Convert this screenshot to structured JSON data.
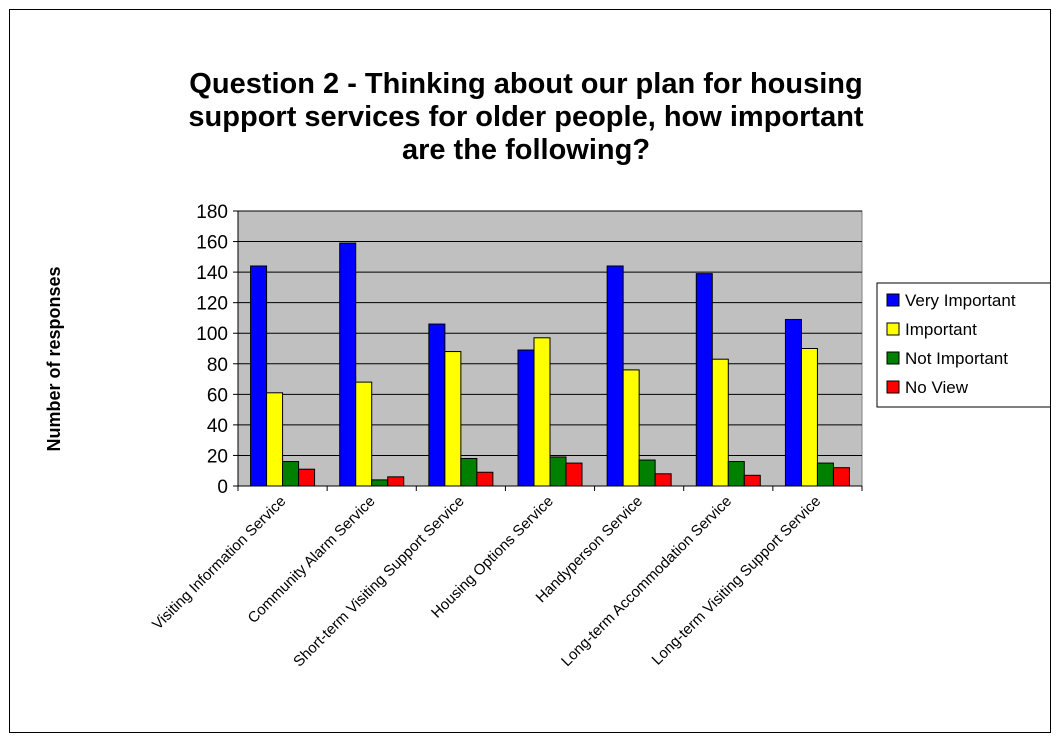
{
  "chart_data": {
    "type": "bar",
    "title": "Question 2 - Thinking about our plan for housing support services for older people, how important are the following?",
    "title_lines": [
      "Question 2 - Thinking about our plan for housing",
      "support services for older people, how important",
      "are the following?"
    ],
    "xlabel": "",
    "ylabel": "Number of responses",
    "ylim": [
      0,
      180
    ],
    "yticks": [
      "0",
      "20",
      "40",
      "60",
      "80",
      "100",
      "120",
      "140",
      "160",
      "180"
    ],
    "grid": true,
    "legend_position": "right",
    "categories": [
      "Visiting Information Service",
      "Community Alarm Service",
      "Short-term Visiting Support Service",
      "Housing Options Service",
      "Handyperson Service",
      "Long-term Accommodation Service",
      "Long-term Visiting Support Service"
    ],
    "series": [
      {
        "name": "Very Important",
        "color": "#0000ff",
        "values": [
          144,
          159,
          106,
          89,
          144,
          139,
          109
        ]
      },
      {
        "name": "Important",
        "color": "#ffff00",
        "values": [
          61,
          68,
          88,
          97,
          76,
          83,
          90
        ]
      },
      {
        "name": "Not Important",
        "color": "#008000",
        "values": [
          16,
          4,
          18,
          19,
          17,
          16,
          15
        ]
      },
      {
        "name": "No View",
        "color": "#ff0000",
        "values": [
          11,
          6,
          9,
          15,
          8,
          7,
          12
        ]
      }
    ],
    "plot_background": "#c0c0c0"
  }
}
